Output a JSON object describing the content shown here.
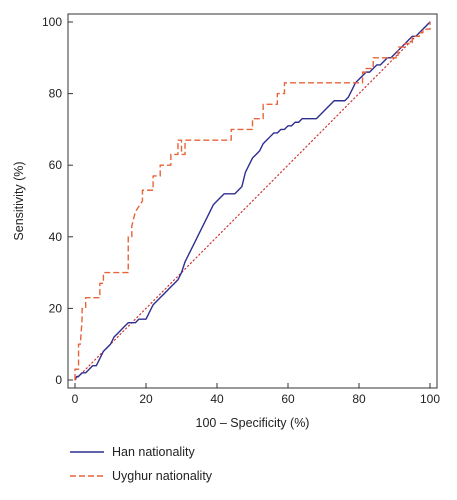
{
  "chart_data": {
    "type": "line",
    "title": "",
    "xlabel": "100 – Specificity (%)",
    "ylabel": "Sensitivity (%)",
    "xlim": [
      0,
      100
    ],
    "ylim": [
      0,
      100
    ],
    "x_ticks": [
      "0",
      "20",
      "40",
      "60",
      "80",
      "100"
    ],
    "y_ticks": [
      "0",
      "20",
      "40",
      "60",
      "80",
      "100"
    ],
    "grid": false,
    "legend_position": "bottom-left",
    "reference_line": {
      "x": [
        0,
        100
      ],
      "y": [
        0,
        100
      ],
      "color": "#cc3333",
      "style": "dotted"
    },
    "series": [
      {
        "name": "Han nationality",
        "color": "#2e2e8f",
        "style": "solid",
        "x": [
          0,
          0.5,
          1,
          2,
          3,
          4,
          5,
          6,
          7,
          8,
          9,
          10,
          11,
          12,
          13,
          14,
          15,
          16,
          17,
          18,
          19,
          20,
          21,
          22,
          23,
          24,
          25,
          26,
          27,
          28,
          29,
          30,
          31,
          32,
          33,
          34,
          35,
          36,
          37,
          38,
          39,
          40,
          41,
          42,
          43,
          44,
          45,
          46,
          47,
          48,
          49,
          50,
          51,
          52,
          53,
          54,
          55,
          56,
          57,
          58,
          59,
          60,
          61,
          62,
          63,
          64,
          65,
          66,
          67,
          68,
          69,
          70,
          71,
          72,
          73,
          74,
          75,
          76,
          77,
          78,
          79,
          80,
          81,
          82,
          83,
          84,
          85,
          86,
          87,
          88,
          89,
          90,
          91,
          92,
          93,
          94,
          95,
          96,
          97,
          98,
          99,
          100
        ],
        "y": [
          0,
          1,
          1,
          2,
          2,
          3,
          4,
          4,
          6,
          8,
          9,
          10,
          12,
          13,
          14,
          15,
          16,
          16,
          16,
          17,
          17,
          17,
          19,
          21,
          22,
          23,
          24,
          25,
          26,
          27,
          28,
          30,
          33,
          35,
          37,
          39,
          41,
          43,
          45,
          47,
          49,
          50,
          51,
          52,
          52,
          52,
          52,
          53,
          54,
          58,
          60,
          62,
          63,
          64,
          66,
          67,
          68,
          69,
          69,
          70,
          70,
          71,
          71,
          72,
          72,
          73,
          73,
          73,
          73,
          73,
          74,
          75,
          76,
          77,
          78,
          78,
          78,
          78,
          79,
          81,
          83,
          84,
          85,
          86,
          86,
          87,
          88,
          88,
          89,
          90,
          90,
          91,
          92,
          93,
          94,
          95,
          96,
          96,
          97,
          98,
          99,
          100
        ]
      },
      {
        "name": "Uyghur nationality",
        "color": "#e8643a",
        "style": "dashed",
        "x": [
          0,
          0,
          1,
          1,
          1.5,
          2,
          2,
          3,
          3,
          7,
          7,
          8,
          8,
          12,
          15,
          15,
          16,
          16,
          17,
          19,
          19,
          22,
          22,
          24,
          24,
          27,
          27,
          29,
          29,
          30,
          30,
          31,
          31,
          44,
          44,
          50,
          50,
          53,
          53,
          57,
          57,
          59,
          59,
          63,
          63,
          81,
          81,
          82,
          82,
          84,
          84,
          86,
          86,
          91,
          91,
          93,
          93,
          95,
          95,
          97,
          97,
          98,
          98,
          100,
          100
        ],
        "y": [
          0,
          3,
          3,
          10,
          10,
          17,
          20,
          20,
          23,
          23,
          27,
          27,
          30,
          30,
          30,
          40,
          40,
          43,
          47,
          50,
          53,
          53,
          57,
          57,
          60,
          60,
          63,
          63,
          67,
          67,
          63,
          63,
          67,
          67,
          70,
          70,
          73,
          73,
          77,
          77,
          80,
          80,
          83,
          83,
          83,
          83,
          86,
          86,
          87,
          87,
          90,
          90,
          90,
          90,
          93,
          93,
          94,
          94,
          96,
          96,
          97,
          97,
          98,
          98,
          100
        ]
      }
    ]
  }
}
